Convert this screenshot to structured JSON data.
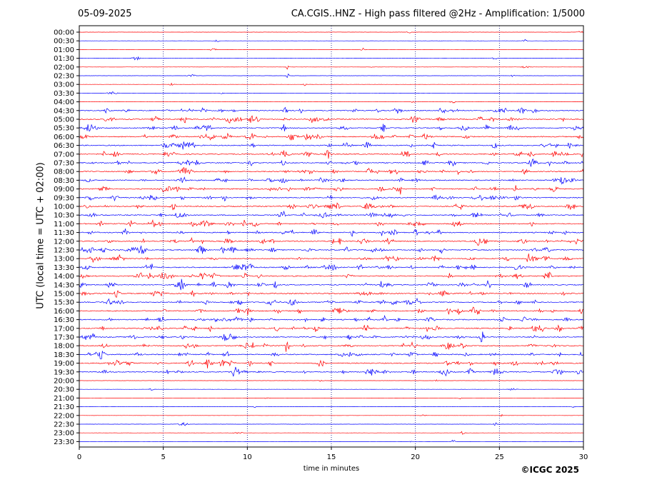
{
  "header": {
    "date": "05-09-2025",
    "title": "CA.CGIS..HNZ - High pass filtered @2Hz - Amplification: 1/5000"
  },
  "footer": {
    "copyright": "©ICGC 2025"
  },
  "chart_data": {
    "type": "line",
    "title": "CA.CGIS..HNZ - High pass filtered @2Hz - Amplification: 1/5000",
    "xlabel": "time in minutes",
    "ylabel": "UTC (local time = UTC + 02:00)",
    "xlim": [
      0,
      30
    ],
    "x_ticks": [
      0,
      5,
      10,
      15,
      20,
      25,
      30
    ],
    "grid": "vertical dotted lines at 5, 10, 15, 20, 25",
    "colors": {
      "red_trace": "#ff0000",
      "blue_trace": "#0000ff",
      "grid": "#000080"
    },
    "rows": [
      "00:00",
      "00:30",
      "01:00",
      "01:30",
      "02:00",
      "02:30",
      "03:00",
      "03:30",
      "04:00",
      "04:30",
      "05:00",
      "05:30",
      "06:00",
      "06:30",
      "07:00",
      "07:30",
      "08:00",
      "08:30",
      "09:00",
      "09:30",
      "10:00",
      "10:30",
      "11:00",
      "11:30",
      "12:00",
      "12:30",
      "13:00",
      "13:30",
      "14:00",
      "14:30",
      "15:00",
      "15:30",
      "16:00",
      "16:30",
      "17:00",
      "17:30",
      "18:00",
      "18:30",
      "19:00",
      "19:30",
      "20:00",
      "20:30",
      "21:00",
      "21:30",
      "22:00",
      "22:30",
      "23:00",
      "23:30"
    ],
    "notable_events": [
      {
        "row": "02:00",
        "minute": 12.4,
        "note": "large spike"
      },
      {
        "row": "02:30",
        "minute": 12.4,
        "note": "large spike"
      },
      {
        "row": "13:30",
        "minute": 4.3,
        "note": "burst"
      },
      {
        "row": "13:30",
        "minute": 9.3,
        "note": "burst"
      }
    ]
  }
}
